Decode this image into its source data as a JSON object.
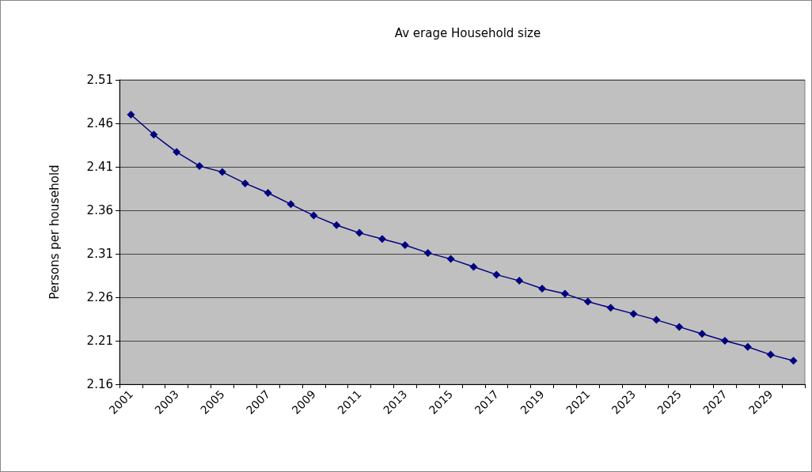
{
  "chart_data": {
    "type": "line",
    "title": "Av erage Household size",
    "ylabel": "Persons per household",
    "categories": [
      "2001",
      null,
      "2003",
      null,
      "2005",
      null,
      "2007",
      null,
      "2009",
      null,
      "2011",
      null,
      "2013",
      null,
      "2015",
      null,
      "2017",
      null,
      "2019",
      null,
      "2021",
      null,
      "2023",
      null,
      "2025",
      null,
      "2027",
      null,
      "2029",
      null
    ],
    "series": [
      {
        "color": "#000080",
        "values": [
          2.47,
          2.447,
          2.427,
          2.411,
          2.404,
          2.391,
          2.38,
          2.367,
          2.354,
          2.343,
          2.334,
          2.327,
          2.32,
          2.311,
          2.304,
          2.295,
          2.286,
          2.279,
          2.27,
          2.264,
          2.255,
          2.248,
          2.241,
          2.234,
          2.226,
          2.218,
          2.21,
          2.203,
          2.194,
          2.187
        ]
      }
    ],
    "ylim": [
      2.16,
      2.51
    ],
    "yticks": [
      2.16,
      2.21,
      2.26,
      2.31,
      2.36,
      2.41,
      2.46,
      2.51
    ],
    "grid": "y",
    "marker": "diamond",
    "line_style": "solid"
  }
}
